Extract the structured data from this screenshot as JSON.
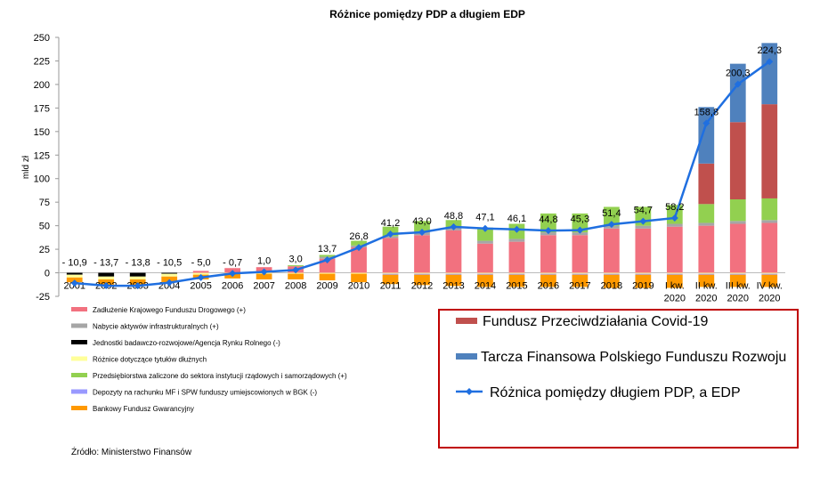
{
  "chart_data": {
    "type": "bar",
    "title": "Różnice pomiędzy PDP a długiem EDP",
    "y_label": "mld zł",
    "source": "Źródło: Ministerstwo Finansów",
    "categories": [
      "2001",
      "2002",
      "2003",
      "2004",
      "2005",
      "2006",
      "2007",
      "2008",
      "2009",
      "2010",
      "2011",
      "2012",
      "2013",
      "2014",
      "2015",
      "2016",
      "2017",
      "2018",
      "2019",
      "I kw. 2020",
      "II kw. 2020",
      "III kw. 2020",
      "IV kw. 2020"
    ],
    "ylim": [
      -25,
      250
    ],
    "yticks": [
      -25,
      0,
      25,
      50,
      75,
      100,
      125,
      150,
      175,
      200,
      225,
      250
    ],
    "series": [
      {
        "name": "Zadłużenie Krajowego Funduszu Drogowego (+)",
        "type": "bar",
        "legend": "bottom-left",
        "color": "#f2717f",
        "values": [
          0,
          0,
          0,
          0,
          2,
          5,
          6,
          7,
          15,
          27,
          37,
          40,
          45,
          31,
          33,
          40,
          40,
          47,
          47,
          49,
          50,
          52,
          53
        ]
      },
      {
        "name": "Nabycie aktywów infrastrukturalnych (+)",
        "type": "bar",
        "legend": "bottom-left",
        "color": "#a6a6a6",
        "values": [
          0,
          0,
          0,
          0,
          0,
          0,
          0,
          0,
          2,
          2,
          2,
          3,
          3,
          3,
          3,
          3,
          3,
          3,
          3,
          3,
          3,
          3,
          3
        ]
      },
      {
        "name": "Jednostki badawczo-rozwojowe/Agencja Rynku Rolnego (-)",
        "type": "bar",
        "legend": "bottom-left",
        "color": "#000000",
        "values": [
          -2,
          -4,
          -4,
          -1,
          0,
          0,
          0,
          0,
          0,
          0,
          0,
          0,
          0,
          0,
          0,
          0,
          0,
          0,
          0,
          0,
          0,
          0,
          0
        ]
      },
      {
        "name": "Różnice dotyczące tytułów dłużnych",
        "type": "bar",
        "legend": "bottom-left",
        "color": "#ffff99",
        "values": [
          -3,
          -3,
          -3,
          -3,
          -2,
          -1,
          -1,
          -1,
          -1,
          -1,
          -1,
          -1,
          -1,
          -1,
          -1,
          -1,
          -1,
          -1,
          -1,
          -1,
          -1,
          -1,
          -1
        ]
      },
      {
        "name": "Przedsiębiorstwa zaliczone do sektora instytucji rządowych i samorządowych (+)",
        "type": "bar",
        "legend": "bottom-left",
        "color": "#92d050",
        "values": [
          0,
          0,
          0,
          0,
          0,
          0,
          0,
          1,
          2,
          5,
          10,
          12,
          8,
          14,
          16,
          20,
          20,
          20,
          20,
          20,
          20,
          23,
          23
        ]
      },
      {
        "name": "Depozyty na rachunku MF i SPW funduszy umiejscowionych w BGK (-)",
        "type": "bar",
        "legend": "bottom-left",
        "color": "#9999ff",
        "values": [
          0,
          0,
          0,
          0,
          0,
          0,
          0,
          0,
          0,
          0,
          -1,
          -1,
          -1,
          -1,
          -1,
          -1,
          -1,
          -1,
          -1,
          -1,
          -1,
          -1,
          -1
        ]
      },
      {
        "name": "Bankowy Fundusz Gwarancyjny",
        "type": "bar",
        "legend": "bottom-left",
        "color": "#ff9900",
        "values": [
          -5,
          -6,
          -6,
          -6,
          -5,
          -5,
          -6,
          -6,
          -7,
          -9,
          -10,
          -11,
          -12,
          -13,
          -13,
          -13,
          -13,
          -14,
          -14,
          -14,
          -13,
          -13,
          -13
        ]
      },
      {
        "name": "Fundusz Przeciwdziałania Covid-19",
        "type": "bar",
        "legend": "boxed",
        "color": "#c0504d",
        "values": [
          0,
          0,
          0,
          0,
          0,
          0,
          0,
          0,
          0,
          0,
          0,
          0,
          0,
          0,
          0,
          0,
          0,
          0,
          0,
          0,
          43,
          82,
          100
        ]
      },
      {
        "name": "Tarcza Finansowa Polskiego Funduszu Rozwoju",
        "type": "bar",
        "legend": "boxed",
        "color": "#4f81bd",
        "values": [
          0,
          0,
          0,
          0,
          0,
          0,
          0,
          0,
          0,
          0,
          0,
          0,
          0,
          0,
          0,
          0,
          0,
          0,
          0,
          0,
          60,
          62,
          65
        ]
      },
      {
        "name": "Różnica pomiędzy długiem PDP, a EDP",
        "type": "line",
        "legend": "boxed",
        "color": "#1f6fe0",
        "values": [
          -10.9,
          -13.7,
          -13.8,
          -10.5,
          -5.0,
          -0.7,
          1.0,
          3.0,
          13.7,
          26.8,
          41.2,
          43.0,
          48.8,
          47.1,
          46.1,
          44.8,
          45.3,
          51.4,
          54.7,
          58.2,
          158.8,
          200.3,
          224.3
        ],
        "value_labels": [
          "- 10,9",
          "- 13,7",
          "- 13,8",
          "- 10,5",
          "- 5,0",
          "- 0,7",
          "1,0",
          "3,0",
          "13,7",
          "26,8",
          "41,2",
          "43,0",
          "48,8",
          "47,1",
          "46,1",
          "44,8",
          "45,3",
          "51,4",
          "54,7",
          "58,2",
          "158,8",
          "200,3",
          "224,3"
        ]
      }
    ]
  }
}
